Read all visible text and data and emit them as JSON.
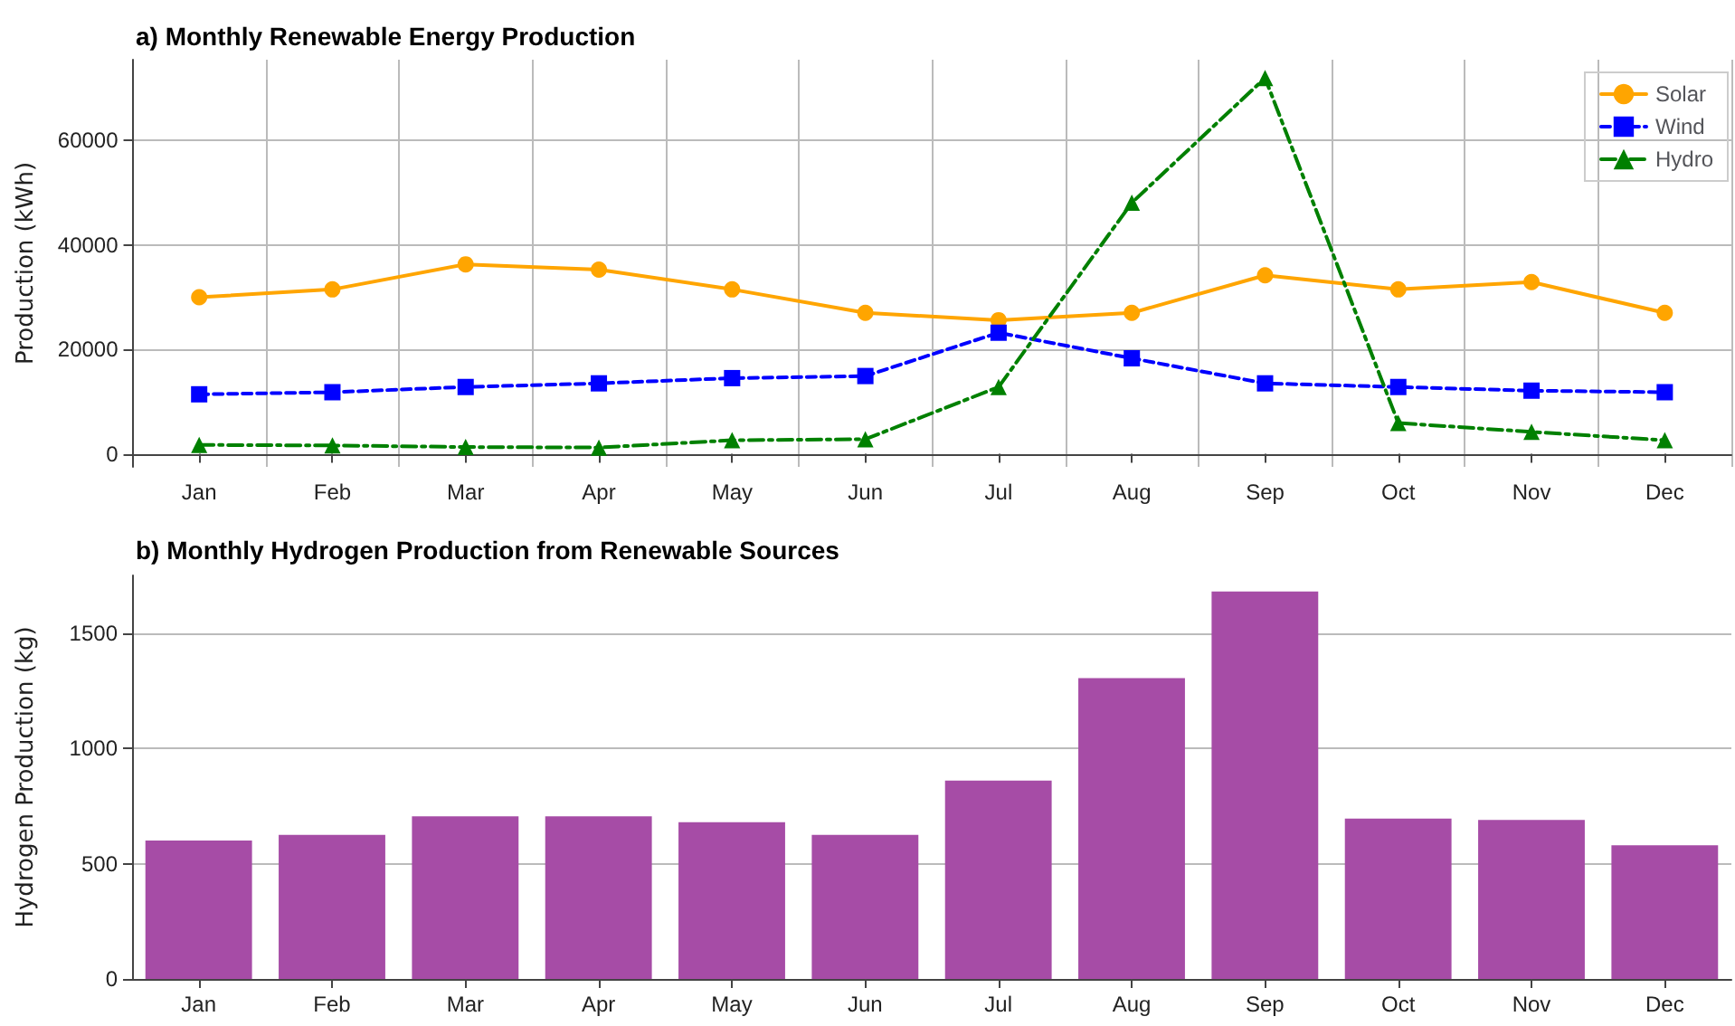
{
  "chart_data": [
    {
      "type": "line",
      "title": "a) Monthly Renewable Energy Production",
      "ylabel": "Production (kWh)",
      "categories": [
        "Jan",
        "Feb",
        "Mar",
        "Apr",
        "May",
        "Jun",
        "Jul",
        "Aug",
        "Sep",
        "Oct",
        "Nov",
        "Dec"
      ],
      "series": [
        {
          "name": "Solar",
          "color": "#ffa500",
          "marker": "circle",
          "line_style": "solid",
          "values": [
            30000,
            31500,
            36300,
            35300,
            31500,
            27000,
            25600,
            27000,
            34200,
            31500,
            32900,
            27000
          ]
        },
        {
          "name": "Wind",
          "color": "#0000ff",
          "marker": "square",
          "line_style": "dashed",
          "values": [
            11400,
            11800,
            12800,
            13500,
            14500,
            14900,
            23200,
            18300,
            13500,
            12800,
            12100,
            11800
          ]
        },
        {
          "name": "Hydro",
          "color": "#008000",
          "marker": "triangle",
          "line_style": "dashdot",
          "values": [
            1700,
            1600,
            1300,
            1200,
            2600,
            2800,
            12800,
            48100,
            72000,
            5900,
            4200,
            2600
          ]
        }
      ],
      "ylim": [
        -2500,
        75500
      ],
      "yticks": [
        0,
        20000,
        40000,
        60000
      ],
      "grid": true,
      "legend": "top right"
    },
    {
      "type": "bar",
      "title": "b) Monthly Hydrogen Production from Renewable Sources",
      "ylabel": "Hydrogen Production (kg)",
      "categories": [
        "Jan",
        "Feb",
        "Mar",
        "Apr",
        "May",
        "Jun",
        "Jul",
        "Aug",
        "Sep",
        "Oct",
        "Nov",
        "Dec"
      ],
      "series": [
        {
          "color": "#a64ca6",
          "values": [
            600,
            625,
            705,
            705,
            680,
            625,
            860,
            1305,
            1680,
            695,
            690,
            580
          ]
        }
      ],
      "ylim": [
        0,
        1750
      ],
      "yticks": [
        0,
        500,
        1000,
        1500
      ],
      "grid": "y"
    }
  ]
}
